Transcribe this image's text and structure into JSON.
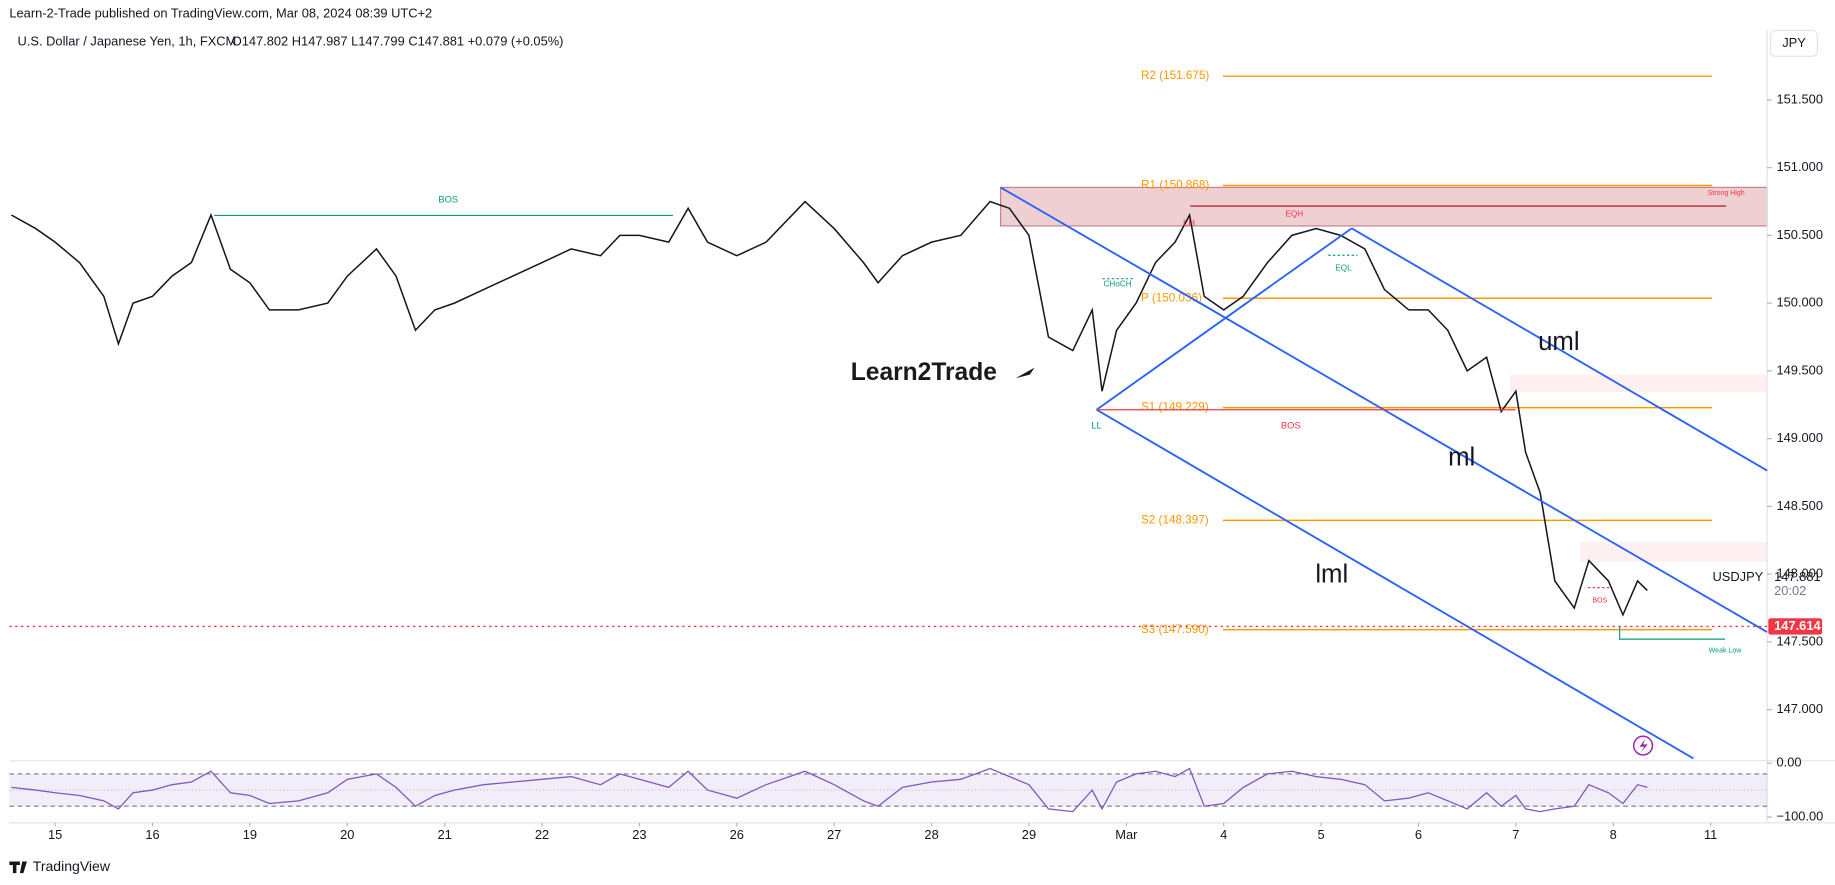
{
  "header": {
    "publisher": "Learn-2-Trade published on TradingView.com, Mar 08, 2024 08:39 UTC+2",
    "symbol": "U.S. Dollar / Japanese Yen, 1h, FXCM",
    "quote": "O147.802 H147.987 L147.799 C147.881 +0.079 (+0.05%)",
    "currency": "JPY"
  },
  "chart_data": {
    "type": "line",
    "x": [
      -0.45,
      -0.2,
      0,
      0.25,
      0.5,
      0.65,
      0.8,
      1,
      1.2,
      1.4,
      1.6,
      1.8,
      2,
      2.2,
      2.5,
      2.8,
      3,
      3.3,
      3.5,
      3.7,
      3.9,
      4.1,
      4.4,
      4.7,
      5,
      5.3,
      5.6,
      5.8,
      6,
      6.3,
      6.5,
      6.7,
      7,
      7.3,
      7.7,
      8,
      8.3,
      8.45,
      8.7,
      9,
      9.3,
      9.6,
      9.8,
      10,
      10.2,
      10.45,
      10.65,
      10.75,
      10.9,
      11.1,
      11.3,
      11.5,
      11.65,
      11.8,
      12,
      12.2,
      12.45,
      12.7,
      12.95,
      13.2,
      13.45,
      13.65,
      13.9,
      14.1,
      14.3,
      14.5,
      14.7,
      14.85,
      15,
      15.1,
      15.25,
      15.4,
      15.6,
      15.75,
      15.95,
      16.1,
      16.25,
      16.35
    ],
    "series": [
      {
        "name": "USDJPY",
        "color": "#131722",
        "values": [
          150.65,
          150.55,
          150.45,
          150.3,
          150.05,
          149.7,
          150,
          150.05,
          150.2,
          150.3,
          150.65,
          150.25,
          150.15,
          149.95,
          149.95,
          150,
          150.2,
          150.4,
          150.2,
          149.8,
          149.95,
          150,
          150.1,
          150.2,
          150.3,
          150.4,
          150.35,
          150.5,
          150.5,
          150.45,
          150.7,
          150.45,
          150.35,
          150.45,
          150.75,
          150.55,
          150.3,
          150.15,
          150.35,
          150.45,
          150.5,
          150.75,
          150.7,
          150.5,
          149.75,
          149.65,
          149.95,
          149.35,
          149.8,
          150,
          150.3,
          150.45,
          150.65,
          150.05,
          149.95,
          150.05,
          150.3,
          150.5,
          150.55,
          150.5,
          150.4,
          150.1,
          149.95,
          149.95,
          149.8,
          149.5,
          149.6,
          149.2,
          149.35,
          148.9,
          148.6,
          147.95,
          147.75,
          148.1,
          147.95,
          147.7,
          147.95,
          147.88
        ]
      }
    ],
    "last_label": "147.881",
    "countdown": "20:02",
    "price_tag": {
      "value": 147.614,
      "label": "147.614",
      "color": "#f23645"
    },
    "xlim": [
      -0.47,
      17.58
    ],
    "xticks": [
      {
        "value": 0,
        "label": "15"
      },
      {
        "value": 1,
        "label": "16"
      },
      {
        "value": 2,
        "label": "19"
      },
      {
        "value": 3,
        "label": "20"
      },
      {
        "value": 4,
        "label": "21"
      },
      {
        "value": 5,
        "label": "22"
      },
      {
        "value": 6,
        "label": "23"
      },
      {
        "value": 7,
        "label": "26"
      },
      {
        "value": 8,
        "label": "27"
      },
      {
        "value": 9,
        "label": "28"
      },
      {
        "value": 10,
        "label": "29"
      },
      {
        "value": 11,
        "label": "Mar"
      },
      {
        "value": 12,
        "label": "4"
      },
      {
        "value": 13,
        "label": "5"
      },
      {
        "value": 14,
        "label": "6"
      },
      {
        "value": 15,
        "label": "7"
      },
      {
        "value": 16,
        "label": "8"
      },
      {
        "value": 17,
        "label": "11"
      }
    ],
    "ylim": [
      146.64,
      152.02
    ],
    "yticks": [
      {
        "value": 151.5,
        "label": "151.500"
      },
      {
        "value": 151,
        "label": "151.000"
      },
      {
        "value": 150.5,
        "label": "150.500"
      },
      {
        "value": 150,
        "label": "150.000"
      },
      {
        "value": 149.5,
        "label": "149.500"
      },
      {
        "value": 149,
        "label": "149.000"
      },
      {
        "value": 148.5,
        "label": "148.500"
      },
      {
        "value": 148,
        "label": "148.000"
      },
      {
        "value": 147.5,
        "label": "147.500"
      },
      {
        "value": 147,
        "label": "147.000"
      }
    ],
    "grid": false,
    "levels": [
      {
        "label": "R2 (151.675)",
        "value": 151.675
      },
      {
        "label": "R1 (150.868)",
        "value": 150.868
      },
      {
        "label": "P (150.036)",
        "value": 150.036
      },
      {
        "label": "S1 (149.229)",
        "value": 149.229
      },
      {
        "label": "S2 (148.397)",
        "value": 148.397
      },
      {
        "label": "S3 (147.590)",
        "value": 147.59
      }
    ],
    "level_color": "#ff9800",
    "annotations": [
      "BOS",
      "LH",
      "EQH",
      "EQL",
      "CHoCH",
      "LL",
      "BOS",
      "BOS",
      "Strong High",
      "Weak Low",
      "uml",
      "ml",
      "lml"
    ],
    "logo": "Learn2Trade",
    "rsi": {
      "color": "#7e57c2",
      "ylim": [
        -100,
        0
      ],
      "yticks": [
        {
          "value": 0,
          "label": "0.00"
        },
        {
          "value": -100,
          "label": "−100.00"
        }
      ],
      "band": [
        -20,
        -80
      ],
      "mid": -50,
      "values": [
        -45,
        -50,
        -55,
        -60,
        -70,
        -85,
        -55,
        -50,
        -40,
        -35,
        -15,
        -55,
        -60,
        -75,
        -70,
        -55,
        -30,
        -20,
        -45,
        -80,
        -60,
        -50,
        -40,
        -35,
        -30,
        -25,
        -40,
        -20,
        -30,
        -45,
        -15,
        -50,
        -65,
        -40,
        -15,
        -40,
        -70,
        -80,
        -45,
        -35,
        -30,
        -10,
        -25,
        -40,
        -85,
        -90,
        -50,
        -85,
        -35,
        -20,
        -15,
        -25,
        -10,
        -80,
        -75,
        -45,
        -20,
        -15,
        -25,
        -30,
        -40,
        -70,
        -65,
        -55,
        -70,
        -85,
        -55,
        -80,
        -60,
        -85,
        -90,
        -85,
        -80,
        -40,
        -55,
        -75,
        -40,
        -45
      ]
    }
  },
  "footer": {
    "brand": "TradingView"
  }
}
